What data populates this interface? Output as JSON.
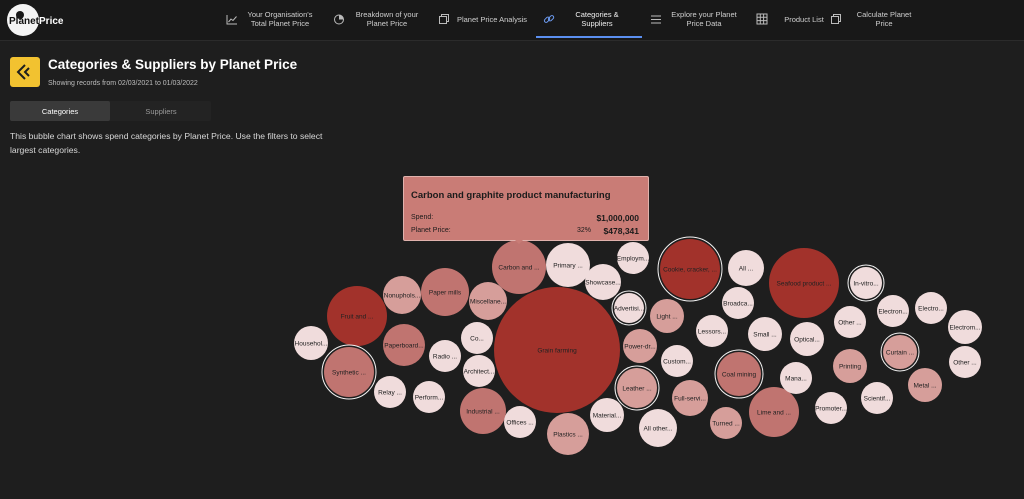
{
  "brand": {
    "logo_text_a": "Planet",
    "logo_text_b": "Price"
  },
  "nav": [
    {
      "label": "Your Organisation's Total Planet Price",
      "icon": "line-chart-icon"
    },
    {
      "label": "Breakdown of your Planet Price",
      "icon": "pie-chart-icon"
    },
    {
      "label": "Planet Price Analysis",
      "icon": "copy-icon"
    },
    {
      "label": "Categories & Suppliers",
      "icon": "link-icon",
      "active": true
    },
    {
      "label": "Explore your Planet Price Data",
      "icon": "list-icon"
    },
    {
      "label": "Product List",
      "icon": "grid-icon"
    },
    {
      "label": "Calculate Planet Price",
      "icon": "copy-icon"
    }
  ],
  "page": {
    "title": "Categories & Suppliers by Planet Price",
    "subtitle": "Showing records from 02/03/2021 to 01/03/2022",
    "tabs": [
      "Categories",
      "Suppliers"
    ],
    "description": "This bubble chart shows spend categories by Planet Price. Use the filters to select largest categories."
  },
  "tooltip": {
    "title": "Carbon and graphite product manufacturing",
    "spend_label": "Spend:",
    "spend_value": "$1,000,000",
    "price_label": "Planet Price:",
    "price_pct": "32%",
    "price_value": "$478,341"
  },
  "colors": {
    "dark": "#a2322b",
    "mid": "#c07470",
    "soft": "#d69e9a",
    "light": "#f0dcdc",
    "accent": "#5b8ff0",
    "brand_yellow": "#f2c230"
  },
  "chart_data": {
    "type": "bubble",
    "bubbles": [
      {
        "label": "Grain farming",
        "tone": "dark"
      },
      {
        "label": "Carbon and ...",
        "tone": "mid"
      },
      {
        "label": "Primary ...",
        "tone": "light"
      },
      {
        "label": "Showcase...",
        "tone": "light"
      },
      {
        "label": "Employm...",
        "tone": "light"
      },
      {
        "label": "Cookie, cracker, ...",
        "tone": "dark",
        "ring": true
      },
      {
        "label": "All ...",
        "tone": "light"
      },
      {
        "label": "Seafood product ...",
        "tone": "dark"
      },
      {
        "label": "In-vitro...",
        "tone": "light",
        "ring": true
      },
      {
        "label": "Fruit and ...",
        "tone": "dark"
      },
      {
        "label": "Nonuphols...",
        "tone": "soft"
      },
      {
        "label": "Paper mills",
        "tone": "mid"
      },
      {
        "label": "Miscellane...",
        "tone": "soft"
      },
      {
        "label": "Househol...",
        "tone": "light"
      },
      {
        "label": "Paperboard...",
        "tone": "mid"
      },
      {
        "label": "Co...",
        "tone": "light"
      },
      {
        "label": "Synthetic ...",
        "tone": "mid",
        "ring": true
      },
      {
        "label": "Radio ...",
        "tone": "light"
      },
      {
        "label": "Architect...",
        "tone": "light"
      },
      {
        "label": "Relay ...",
        "tone": "light"
      },
      {
        "label": "Perform...",
        "tone": "light"
      },
      {
        "label": "Industrial ...",
        "tone": "mid"
      },
      {
        "label": "Offices ...",
        "tone": "light"
      },
      {
        "label": "Plastics ...",
        "tone": "soft"
      },
      {
        "label": "Advertisi...",
        "tone": "light",
        "ring": true
      },
      {
        "label": "Light ...",
        "tone": "soft"
      },
      {
        "label": "Power-dr...",
        "tone": "soft"
      },
      {
        "label": "Leather ...",
        "tone": "soft",
        "ring": true
      },
      {
        "label": "Material...",
        "tone": "light"
      },
      {
        "label": "All other...",
        "tone": "light"
      },
      {
        "label": "Custom...",
        "tone": "light"
      },
      {
        "label": "Broadca...",
        "tone": "light"
      },
      {
        "label": "Lessors...",
        "tone": "light"
      },
      {
        "label": "Small ...",
        "tone": "light"
      },
      {
        "label": "Optical...",
        "tone": "light"
      },
      {
        "label": "Coal mining",
        "tone": "mid",
        "ring": true
      },
      {
        "label": "Full-servi...",
        "tone": "soft"
      },
      {
        "label": "Turned ...",
        "tone": "soft"
      },
      {
        "label": "Lime and ...",
        "tone": "mid"
      },
      {
        "label": "Mana...",
        "tone": "light"
      },
      {
        "label": "Promoter...",
        "tone": "light"
      },
      {
        "label": "Other ...",
        "tone": "light"
      },
      {
        "label": "Printing",
        "tone": "soft"
      },
      {
        "label": "Electron...",
        "tone": "light"
      },
      {
        "label": "Electro...",
        "tone": "light"
      },
      {
        "label": "Curtain ...",
        "tone": "soft",
        "ring": true
      },
      {
        "label": "Electrom...",
        "tone": "light"
      },
      {
        "label": "Other ...",
        "tone": "light"
      },
      {
        "label": "Scientif...",
        "tone": "light"
      },
      {
        "label": "Metal ...",
        "tone": "soft"
      }
    ]
  }
}
